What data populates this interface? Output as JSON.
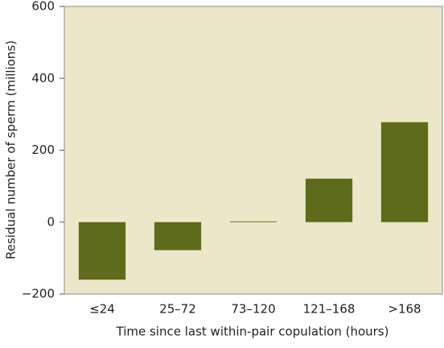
{
  "chart_data": {
    "type": "bar",
    "x_label": "Time since last within-pair copulation (hours)",
    "y_label": "Residual number of sperm (millions)",
    "categories": [
      "≤24",
      "25–72",
      "73–120",
      "121–168",
      ">168"
    ],
    "values": [
      -160,
      -78,
      2,
      121,
      278
    ],
    "color": "#5e6b1a",
    "ylim": [
      -200,
      600
    ],
    "yticks": [
      {
        "value": -200,
        "label": "−200"
      },
      0,
      200,
      400,
      600
    ],
    "grid": false
  }
}
